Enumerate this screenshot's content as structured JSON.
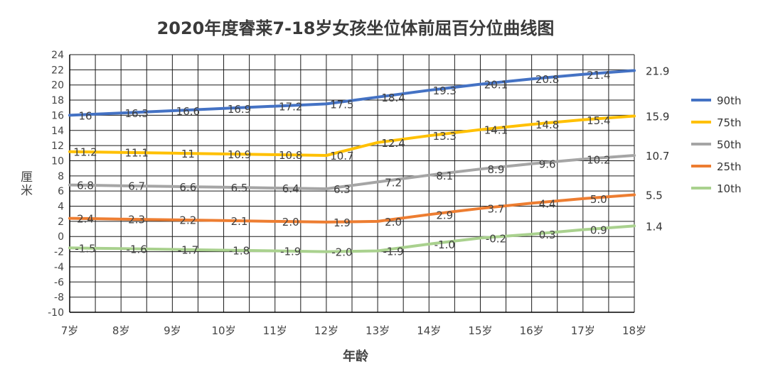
{
  "chart_data": {
    "type": "line",
    "title": "2020年度睿莱7-18岁女孩坐位体前屈百分位曲线图",
    "xlabel": "年龄",
    "ylabel": "厘米",
    "categories": [
      "7岁",
      "8岁",
      "9岁",
      "10岁",
      "11岁",
      "12岁",
      "13岁",
      "14岁",
      "15岁",
      "16岁",
      "17岁",
      "18岁"
    ],
    "ylim": [
      -10,
      24
    ],
    "yticks": [
      24,
      22,
      20,
      18,
      16,
      14,
      12,
      10,
      8,
      6,
      4,
      2,
      0,
      -2,
      -4,
      -6,
      -8,
      -10
    ],
    "grid": true,
    "legend": "right",
    "series": [
      {
        "name": "90th",
        "color": "#4472C4",
        "values": [
          16,
          16.3,
          16.6,
          16.9,
          17.2,
          17.5,
          18.4,
          19.3,
          20.1,
          20.8,
          21.4,
          21.9
        ],
        "labels": [
          "16",
          "16.3",
          "16.6",
          "16.9",
          "17.2",
          "17.5",
          "18.4",
          "19.3",
          "20.1",
          "20.8",
          "21.4",
          "21.9"
        ]
      },
      {
        "name": "75th",
        "color": "#FFC000",
        "values": [
          11.2,
          11.1,
          11,
          10.9,
          10.8,
          10.7,
          12.4,
          13.3,
          14.1,
          14.8,
          15.4,
          15.9
        ],
        "labels": [
          "11.2",
          "11.1",
          "11",
          "10.9",
          "10.8",
          "10.7",
          "12.4",
          "13.3",
          "14.1",
          "14.8",
          "15.4",
          "15.9"
        ]
      },
      {
        "name": "50th",
        "color": "#A5A5A5",
        "values": [
          6.8,
          6.7,
          6.6,
          6.5,
          6.4,
          6.3,
          7.2,
          8.1,
          8.9,
          9.6,
          10.2,
          10.7
        ],
        "labels": [
          "6.8",
          "6.7",
          "6.6",
          "6.5",
          "6.4",
          "6.3",
          "7.2",
          "8.1",
          "8.9",
          "9.6",
          "10.2",
          "10.7"
        ]
      },
      {
        "name": "25th",
        "color": "#ED7D31",
        "values": [
          2.4,
          2.3,
          2.2,
          2.1,
          2.0,
          1.9,
          2.0,
          2.9,
          3.7,
          4.4,
          5.0,
          5.5
        ],
        "labels": [
          "2.4",
          "2.3",
          "2.2",
          "2.1",
          "2.0",
          "1.9",
          "2.0",
          "2.9",
          "3.7",
          "4.4",
          "5.0",
          "5.5"
        ]
      },
      {
        "name": "10th",
        "color": "#A9D18E",
        "values": [
          -1.5,
          -1.6,
          -1.7,
          -1.8,
          -1.9,
          -2.0,
          -1.9,
          -1.0,
          -0.2,
          0.3,
          0.9,
          1.4
        ],
        "labels": [
          "-1.5",
          "-1.6",
          "-1.7",
          "-1.8",
          "-1.9",
          "-2.0",
          "-1.9",
          "-1.0",
          "-0.2",
          "0.3",
          "0.9",
          "1.4"
        ]
      }
    ]
  }
}
